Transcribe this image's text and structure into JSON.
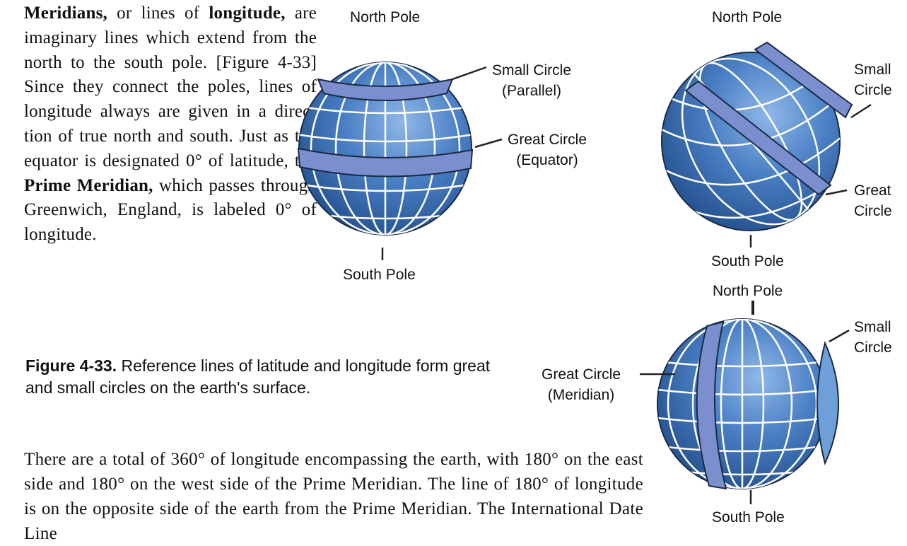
{
  "intro": {
    "term1": "Meridians,",
    "t1": " or lines of ",
    "term2": "longitude,",
    "t2": " are imaginary lines which extend from the north to the south pole. [Figure 4-33] Since they connect the poles, lines of longitude always are given in a direc-tion of true north and south. Just as the equator is designated 0° of latitude, the ",
    "term3": "Prime Meridian,",
    "t3": " which passes through Greenwich, England, is labeled 0° of longitude."
  },
  "caption": {
    "label": "Figure 4-33.",
    "text": " Reference lines of latitude and longitude form great and small circles on the earth's surface."
  },
  "para2": "There are a total of 360° of longitude encompassing the earth, with 180° on the east side and 180° on the west side of the Prime Meridian. The line of 180° of longitude is on the opposite side of the earth from the Prime Meridian. The International Date Line",
  "figure": {
    "globe1": {
      "north_pole": "North Pole",
      "south_pole": "South Pole",
      "small_circle": [
        "Small Circle",
        "(Parallel)"
      ],
      "great_circle": [
        "Great Circle",
        "(Equator)"
      ]
    },
    "globe2": {
      "north_pole": "North Pole",
      "south_pole": "South Pole",
      "small_circle": [
        "Small",
        "Circle"
      ],
      "great_circle": [
        "Great",
        "Circle"
      ]
    },
    "globe3": {
      "north_pole": "North Pole",
      "south_pole": "South Pole",
      "small_circle": [
        "Small",
        "Circle"
      ],
      "great_circle": [
        "Great Circle",
        "(Meridian)"
      ]
    }
  },
  "colors": {
    "globe_dark": "#2f5d9e",
    "globe_light": "#6f9fd8",
    "band": "#7b8fcf",
    "outline": "#1a2a44"
  }
}
